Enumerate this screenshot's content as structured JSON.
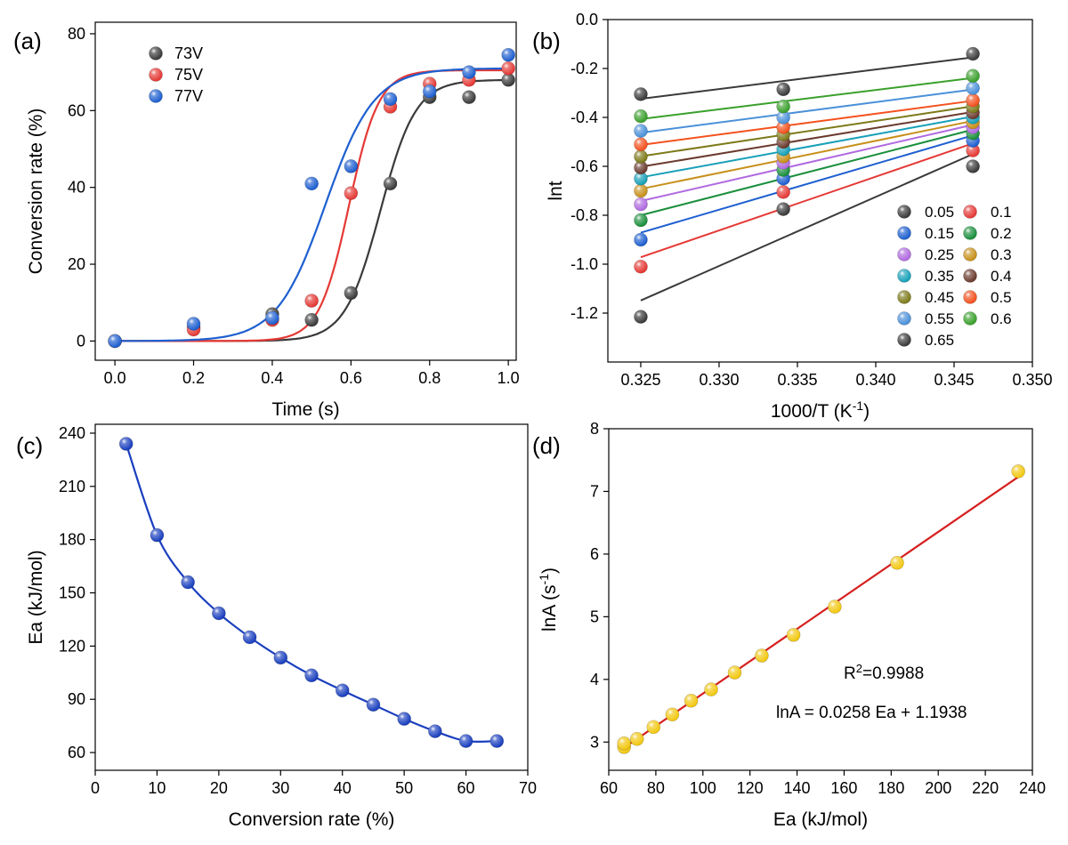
{
  "chart_data": [
    {
      "panel": "(a)",
      "type": "scatter",
      "xlabel": "Time (s)",
      "ylabel": "Conversion rate (%)",
      "xlim": [
        -0.05,
        1.02
      ],
      "ylim": [
        -5,
        83
      ],
      "xticks": [
        0.0,
        0.2,
        0.4,
        0.6,
        0.8,
        1.0
      ],
      "xtick_labels": [
        "0.0",
        "0.2",
        "0.4",
        "0.6",
        "0.8",
        "1.0"
      ],
      "yticks": [
        0,
        20,
        40,
        60,
        80
      ],
      "ytick_labels": [
        "0",
        "20",
        "40",
        "60",
        "80"
      ],
      "legend_position": "top-left",
      "series": [
        {
          "name": "73V",
          "color": "#3a3a3a",
          "x": [
            0.0,
            0.2,
            0.4,
            0.5,
            0.6,
            0.7,
            0.8,
            0.9,
            1.0
          ],
          "y": [
            0,
            3.5,
            7.0,
            5.5,
            12.5,
            41.0,
            63.5,
            63.5,
            68.0
          ],
          "fit": {
            "A1": 0,
            "A2": 68.0,
            "x0": 0.675,
            "dx": 0.045
          }
        },
        {
          "name": "75V",
          "color": "#e53935",
          "x": [
            0.0,
            0.2,
            0.4,
            0.5,
            0.6,
            0.7,
            0.8,
            0.9,
            1.0
          ],
          "y": [
            0,
            3.0,
            5.5,
            10.5,
            38.5,
            61.0,
            67.0,
            68.0,
            71.0
          ],
          "fit": {
            "A1": 0,
            "A2": 70.5,
            "x0": 0.595,
            "dx": 0.038
          }
        },
        {
          "name": "77V",
          "color": "#1e5fd0",
          "x": [
            0.0,
            0.2,
            0.4,
            0.5,
            0.6,
            0.7,
            0.8,
            0.9,
            1.0
          ],
          "y": [
            0,
            4.5,
            6.0,
            41.0,
            45.5,
            63.0,
            65.0,
            70.0,
            74.5
          ],
          "fit": {
            "A1": 0,
            "A2": 71.0,
            "x0": 0.535,
            "dx": 0.062
          }
        }
      ]
    },
    {
      "panel": "(b)",
      "type": "scatter",
      "xlabel": "1000/T (K",
      "xlabel_sup": "-1",
      "xlabel_end": ")",
      "ylabel": "lnt",
      "xlim": [
        0.3229,
        0.35
      ],
      "ylim": [
        -1.4,
        0.0
      ],
      "xticks": [
        0.325,
        0.33,
        0.335,
        0.34,
        0.345,
        0.35
      ],
      "xtick_labels": [
        "0.325",
        "0.330",
        "0.335",
        "0.340",
        "0.345",
        "0.350"
      ],
      "yticks": [
        0.0,
        -0.2,
        -0.4,
        -0.6,
        -0.8,
        -1.0,
        -1.2
      ],
      "ytick_labels": [
        "0.0",
        "-0.2",
        "-0.4",
        "-0.6",
        "-0.8",
        "-1.0",
        "-1.2"
      ],
      "legend_position": "bottom-right",
      "x": [
        0.325,
        0.3341,
        0.3462
      ],
      "series": [
        {
          "name": "0.05",
          "color": "#3a3a3a",
          "y": [
            -1.215,
            -0.775,
            -0.6
          ]
        },
        {
          "name": "0.1",
          "color": "#e53935",
          "y": [
            -1.01,
            -0.705,
            -0.535
          ]
        },
        {
          "name": "0.15",
          "color": "#1e5fd0",
          "y": [
            -0.9,
            -0.65,
            -0.495
          ]
        },
        {
          "name": "0.2",
          "color": "#1a8f3c",
          "y": [
            -0.82,
            -0.615,
            -0.465
          ]
        },
        {
          "name": "0.25",
          "color": "#b06ae0",
          "y": [
            -0.755,
            -0.585,
            -0.44
          ]
        },
        {
          "name": "0.3",
          "color": "#c7901a",
          "y": [
            -0.7,
            -0.56,
            -0.42
          ]
        },
        {
          "name": "0.35",
          "color": "#17a0b8",
          "y": [
            -0.65,
            -0.53,
            -0.4
          ]
        },
        {
          "name": "0.4",
          "color": "#6b3a2e",
          "y": [
            -0.605,
            -0.5,
            -0.38
          ]
        },
        {
          "name": "0.45",
          "color": "#7d7a1a",
          "y": [
            -0.56,
            -0.47,
            -0.355
          ]
        },
        {
          "name": "0.5",
          "color": "#f4511e",
          "y": [
            -0.51,
            -0.44,
            -0.33
          ]
        },
        {
          "name": "0.55",
          "color": "#4a90d9",
          "y": [
            -0.455,
            -0.4,
            -0.28
          ]
        },
        {
          "name": "0.6",
          "color": "#3aa02c",
          "y": [
            -0.395,
            -0.355,
            -0.23
          ]
        },
        {
          "name": "0.65",
          "color": "#3a3a3a",
          "y": [
            -0.305,
            -0.285,
            -0.14
          ]
        }
      ]
    },
    {
      "panel": "(c)",
      "type": "scatter",
      "xlabel": "Conversion rate (%)",
      "ylabel": "Ea (kJ/mol)",
      "xlim": [
        0,
        70
      ],
      "ylim": [
        50,
        245
      ],
      "xticks": [
        0,
        10,
        20,
        30,
        40,
        50,
        60,
        70
      ],
      "xtick_labels": [
        "0",
        "10",
        "20",
        "30",
        "40",
        "50",
        "60",
        "70"
      ],
      "yticks": [
        60,
        90,
        120,
        150,
        180,
        210,
        240
      ],
      "ytick_labels": [
        "60",
        "90",
        "120",
        "150",
        "180",
        "210",
        "240"
      ],
      "series": [
        {
          "name": "Ea",
          "color": "#1a3fbf",
          "x": [
            5,
            10,
            15,
            20,
            25,
            30,
            35,
            40,
            45,
            50,
            55,
            60,
            65
          ],
          "y": [
            234,
            182.5,
            156,
            138.5,
            125,
            113.5,
            103.5,
            95,
            87,
            79,
            72,
            66.5,
            66.5
          ]
        }
      ]
    },
    {
      "panel": "(d)",
      "type": "scatter",
      "xlabel": "Ea (kJ/mol)",
      "ylabel": "lnA (s",
      "ylabel_sup": "-1",
      "ylabel_end": ")",
      "xlim": [
        60,
        240
      ],
      "ylim": [
        2.55,
        8.0
      ],
      "xticks": [
        60,
        80,
        100,
        120,
        140,
        160,
        180,
        200,
        220,
        240
      ],
      "xtick_labels": [
        "60",
        "80",
        "100",
        "120",
        "140",
        "160",
        "180",
        "200",
        "220",
        "240"
      ],
      "yticks": [
        3,
        4,
        5,
        6,
        7,
        8
      ],
      "ytick_labels": [
        "3",
        "4",
        "5",
        "6",
        "7",
        "8"
      ],
      "annotation_r2_base": "R",
      "annotation_r2_sup": "2",
      "annotation_r2_value": "=0.9988",
      "annotation_eq": "lnA = 0.0258 Ea + 1.1938",
      "fit": {
        "slope": 0.0258,
        "intercept": 1.1938,
        "color": "#d62020"
      },
      "series": [
        {
          "name": "lnA",
          "color": "#f2c811",
          "x": [
            66.5,
            66.5,
            72,
            79,
            87,
            95,
            103.5,
            113.5,
            125,
            138.5,
            156,
            182.5,
            234
          ],
          "y": [
            2.92,
            2.98,
            3.05,
            3.24,
            3.44,
            3.66,
            3.84,
            4.11,
            4.38,
            4.71,
            5.16,
            5.86,
            7.32
          ]
        }
      ]
    }
  ]
}
